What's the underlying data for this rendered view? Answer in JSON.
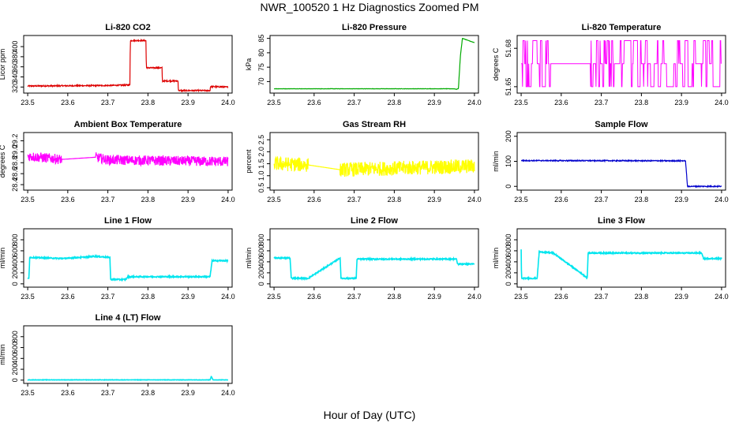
{
  "title": "NWR_100520  1 Hz Diagnostics Zoomed PM",
  "xlabel": "Hour of Day (UTC)",
  "chart_data": [
    {
      "type": "line",
      "title": "Li-820 CO2",
      "ylabel": "Licor ppm",
      "color": "#dd0000",
      "xlim": [
        23.49,
        24.01
      ],
      "ylim": [
        308,
        422
      ],
      "xticks": [
        23.5,
        23.6,
        23.7,
        23.8,
        23.9,
        24.0
      ],
      "xtick_labels": [
        "23.5",
        "23.6",
        "23.7",
        "23.8",
        "23.9",
        "24.0"
      ],
      "yticks": [
        320,
        340,
        360,
        380,
        400
      ],
      "ytick_labels": [
        "320",
        "340",
        "360",
        "380",
        "400"
      ],
      "noise": 1.2,
      "series": [
        {
          "x": [
            23.5,
            23.7,
            23.755,
            23.756,
            23.795,
            23.796,
            23.835,
            23.836,
            23.875,
            23.876,
            23.955,
            23.956,
            24.0
          ],
          "y": [
            322,
            323,
            324,
            412,
            412,
            358,
            358,
            332,
            332,
            313,
            313,
            321,
            320
          ]
        }
      ]
    },
    {
      "type": "line",
      "title": "Li-820 Pressure",
      "ylabel": "kPa",
      "color": "#00aa00",
      "xlim": [
        23.49,
        24.01
      ],
      "ylim": [
        66,
        86
      ],
      "xticks": [
        23.5,
        23.6,
        23.7,
        23.8,
        23.9,
        24.0
      ],
      "xtick_labels": [
        "23.5",
        "23.6",
        "23.7",
        "23.8",
        "23.9",
        "24.0"
      ],
      "yticks": [
        70,
        75,
        80,
        85
      ],
      "ytick_labels": [
        "70",
        "75",
        "80",
        "85"
      ],
      "noise": 0.05,
      "series": [
        {
          "x": [
            23.5,
            23.95,
            23.955,
            23.96,
            23.965,
            23.97,
            24.0
          ],
          "y": [
            67.5,
            67.5,
            67.3,
            67.6,
            79,
            85,
            83.5
          ]
        }
      ]
    },
    {
      "type": "step",
      "title": "Li-820 Temperature",
      "ylabel": "degrees C",
      "color": "#ff00ff",
      "xlim": [
        23.49,
        24.01
      ],
      "ylim": [
        51.645,
        51.69
      ],
      "xticks": [
        23.5,
        23.6,
        23.7,
        23.8,
        23.9,
        24.0
      ],
      "xtick_labels": [
        "23.5",
        "23.6",
        "23.7",
        "23.8",
        "23.9",
        "24.0"
      ],
      "yticks": [
        51.65,
        51.68
      ],
      "ytick_labels": [
        "51.65",
        "51.68"
      ],
      "levels": [
        51.65,
        51.668,
        51.686
      ],
      "segments": [
        [
          23.5,
          23.575,
          0.5
        ],
        [
          23.575,
          23.67,
          0.0
        ],
        [
          23.67,
          23.755,
          0.45
        ],
        [
          23.755,
          23.8,
          0.15
        ],
        [
          23.8,
          23.9,
          0.35
        ],
        [
          23.9,
          24.0,
          0.25
        ]
      ]
    },
    {
      "type": "line",
      "title": "Ambient Box Temperature",
      "ylabel": "degrees C",
      "color": "#ff00ff",
      "xlim": [
        23.49,
        24.01
      ],
      "ylim": [
        28.3,
        29.35
      ],
      "xticks": [
        23.5,
        23.6,
        23.7,
        23.8,
        23.9,
        24.0
      ],
      "xtick_labels": [
        "23.5",
        "23.6",
        "23.7",
        "23.8",
        "23.9",
        "24.0"
      ],
      "yticks": [
        28.4,
        28.6,
        28.8,
        29.0,
        29.2
      ],
      "ytick_labels": [
        "28.4",
        "28.6",
        "28.8",
        "29.0",
        "29.2"
      ],
      "noise": 0.09,
      "gaps": [
        [
          23.585,
          23.67
        ]
      ],
      "series": [
        {
          "x": [
            23.5,
            23.585,
            23.67,
            23.7,
            24.0
          ],
          "y": [
            28.92,
            28.86,
            28.9,
            28.85,
            28.82
          ]
        }
      ]
    },
    {
      "type": "line",
      "title": "Gas Stream RH",
      "ylabel": "percent",
      "color": "#ffff00",
      "xlim": [
        23.49,
        24.01
      ],
      "ylim": [
        0.4,
        2.8
      ],
      "xticks": [
        23.5,
        23.6,
        23.7,
        23.8,
        23.9,
        24.0
      ],
      "xtick_labels": [
        "23.5",
        "23.6",
        "23.7",
        "23.8",
        "23.9",
        "24.0"
      ],
      "yticks": [
        0.5,
        1.0,
        1.5,
        2.0,
        2.5
      ],
      "ytick_labels": [
        "0.5",
        "1.0",
        "1.5",
        "2.0",
        "2.5"
      ],
      "noise": 0.3,
      "gaps": [
        [
          23.585,
          23.665
        ]
      ],
      "series": [
        {
          "x": [
            23.5,
            23.585,
            23.665,
            24.0
          ],
          "y": [
            1.5,
            1.45,
            1.25,
            1.4
          ]
        }
      ]
    },
    {
      "type": "line",
      "title": "Sample Flow",
      "ylabel": "ml/min",
      "color": "#0000cc",
      "xlim": [
        23.49,
        24.01
      ],
      "ylim": [
        -15,
        215
      ],
      "xticks": [
        23.5,
        23.6,
        23.7,
        23.8,
        23.9,
        24.0
      ],
      "xtick_labels": [
        "23.5",
        "23.6",
        "23.7",
        "23.8",
        "23.9",
        "24.0"
      ],
      "yticks": [
        0,
        100,
        200
      ],
      "ytick_labels": [
        "0",
        "100",
        "200"
      ],
      "noise": 2,
      "series": [
        {
          "x": [
            23.5,
            23.91,
            23.915,
            24.0
          ],
          "y": [
            103,
            102,
            0,
            0
          ]
        }
      ]
    },
    {
      "type": "line",
      "title": "Line 1 Flow",
      "ylabel": "ml/min",
      "color": "#00e5ee",
      "xlim": [
        23.49,
        24.01
      ],
      "ylim": [
        -60,
        1000
      ],
      "xticks": [
        23.5,
        23.6,
        23.7,
        23.8,
        23.9,
        24.0
      ],
      "xtick_labels": [
        "23.5",
        "23.6",
        "23.7",
        "23.8",
        "23.9",
        "24.0"
      ],
      "yticks": [
        0,
        200,
        400,
        600,
        800
      ],
      "ytick_labels": [
        "0",
        "200",
        "400",
        "600",
        "800"
      ],
      "noise": 10,
      "series": [
        {
          "x": [
            23.5,
            23.503,
            23.505,
            23.59,
            23.67,
            23.705,
            23.707,
            23.745,
            23.75,
            23.955,
            23.96,
            24.0
          ],
          "y": [
            100,
            100,
            480,
            460,
            500,
            480,
            80,
            80,
            130,
            130,
            420,
            420
          ]
        }
      ]
    },
    {
      "type": "line",
      "title": "Line 2 Flow",
      "ylabel": "ml/min",
      "color": "#00e5ee",
      "xlim": [
        23.49,
        24.01
      ],
      "ylim": [
        -60,
        1000
      ],
      "xticks": [
        23.5,
        23.6,
        23.7,
        23.8,
        23.9,
        24.0
      ],
      "xtick_labels": [
        "23.5",
        "23.6",
        "23.7",
        "23.8",
        "23.9",
        "24.0"
      ],
      "yticks": [
        0,
        200,
        400,
        600,
        800
      ],
      "ytick_labels": [
        "0",
        "200",
        "400",
        "600",
        "800"
      ],
      "noise": 10,
      "series": [
        {
          "x": [
            23.5,
            23.54,
            23.543,
            23.585,
            23.665,
            23.667,
            23.705,
            23.707,
            23.955,
            23.958,
            24.0
          ],
          "y": [
            470,
            470,
            100,
            100,
            470,
            100,
            100,
            450,
            450,
            360,
            360
          ]
        }
      ]
    },
    {
      "type": "line",
      "title": "Line 3 Flow",
      "ylabel": "ml/min",
      "color": "#00e5ee",
      "xlim": [
        23.49,
        24.01
      ],
      "ylim": [
        -60,
        1000
      ],
      "xticks": [
        23.5,
        23.6,
        23.7,
        23.8,
        23.9,
        24.0
      ],
      "xtick_labels": [
        "23.5",
        "23.6",
        "23.7",
        "23.8",
        "23.9",
        "24.0"
      ],
      "yticks": [
        0,
        200,
        400,
        600,
        800
      ],
      "ytick_labels": [
        "0",
        "200",
        "400",
        "600",
        "800"
      ],
      "noise": 10,
      "series": [
        {
          "x": [
            23.5,
            23.501,
            23.505,
            23.54,
            23.545,
            23.58,
            23.665,
            23.667,
            23.95,
            23.955,
            24.0
          ],
          "y": [
            620,
            100,
            100,
            100,
            580,
            560,
            110,
            560,
            560,
            460,
            460
          ]
        }
      ]
    },
    {
      "type": "line",
      "title": "Line 4 (LT) Flow",
      "ylabel": "ml/min",
      "color": "#00e5ee",
      "xlim": [
        23.49,
        24.01
      ],
      "ylim": [
        -60,
        1000
      ],
      "xticks": [
        23.5,
        23.6,
        23.7,
        23.8,
        23.9,
        24.0
      ],
      "xtick_labels": [
        "23.5",
        "23.6",
        "23.7",
        "23.8",
        "23.9",
        "24.0"
      ],
      "yticks": [
        0,
        200,
        400,
        600,
        800
      ],
      "ytick_labels": [
        "0",
        "200",
        "400",
        "600",
        "800"
      ],
      "noise": 3,
      "series": [
        {
          "x": [
            23.5,
            23.955,
            23.958,
            23.962,
            24.0
          ],
          "y": [
            5,
            5,
            70,
            5,
            5
          ]
        }
      ]
    }
  ]
}
